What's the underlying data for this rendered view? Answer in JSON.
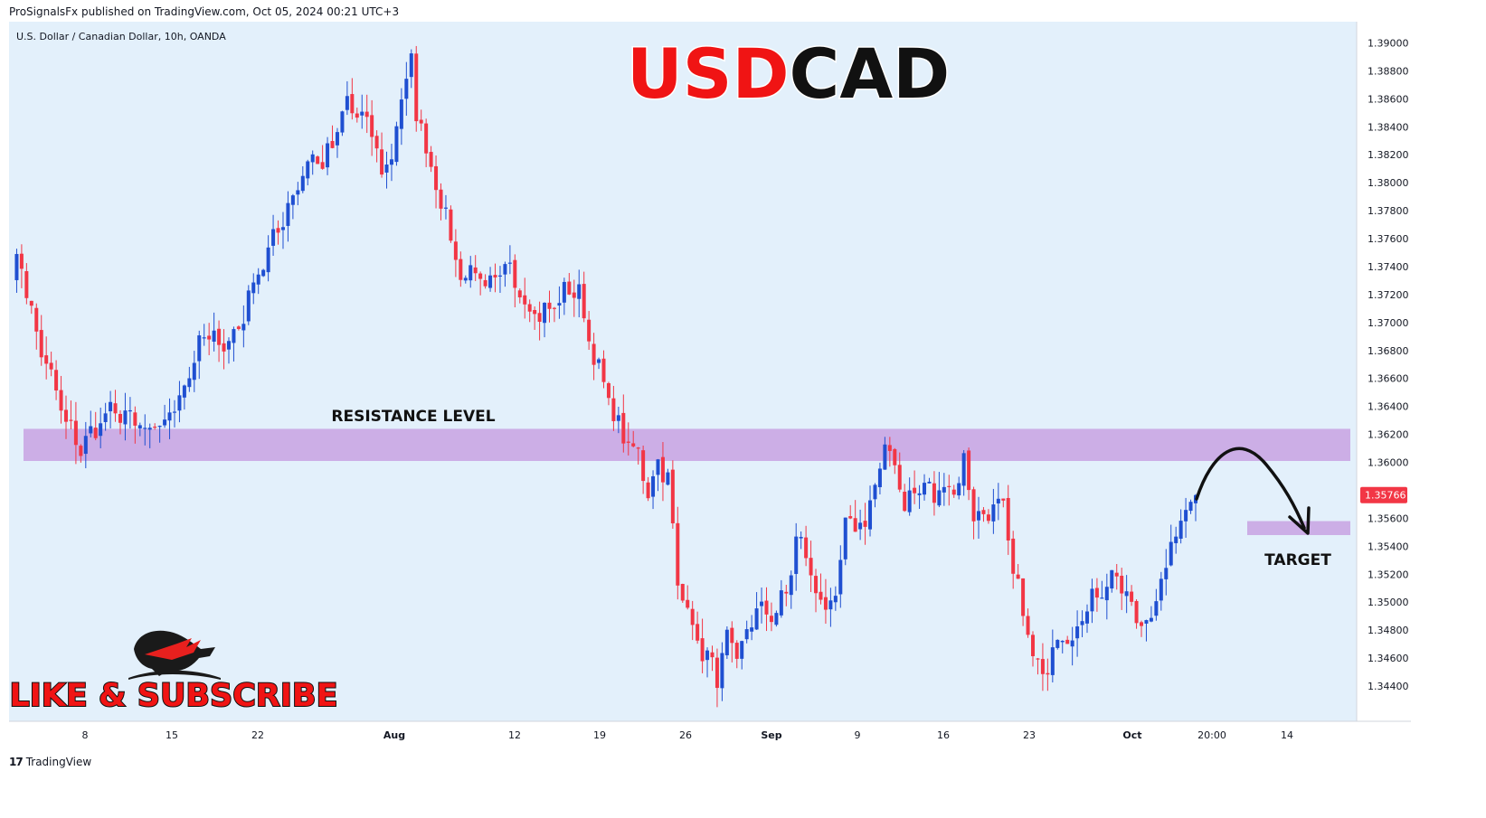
{
  "header": {
    "publisher_line": "ProSignalsFx published on TradingView.com, Oct 05, 2024 00:21 UTC+3"
  },
  "footer": {
    "brand": "TradingView"
  },
  "colors": {
    "background": "#e3f0fb",
    "bull": "#1f4fd1",
    "bear": "#f23645",
    "zone": "#c9a6e3",
    "price_tag": "#f23645",
    "title_red": "#f01414",
    "title_black": "#111111"
  },
  "chart_data": {
    "type": "candlestick",
    "instrument": "U.S. Dollar / Canadian Dollar, 10h, OANDA",
    "title_part1": "USD",
    "title_part2": "CAD",
    "ylim": [
      1.342,
      1.391
    ],
    "y_ticks": [
      "1.39000",
      "1.38800",
      "1.38600",
      "1.38400",
      "1.38200",
      "1.38000",
      "1.37800",
      "1.37600",
      "1.37400",
      "1.37200",
      "1.37000",
      "1.36800",
      "1.36600",
      "1.36400",
      "1.36200",
      "1.36000",
      "1.35600",
      "1.35400",
      "1.35200",
      "1.35000",
      "1.34800",
      "1.34600",
      "1.34400"
    ],
    "x_ticks": [
      {
        "label": "8",
        "bold": false
      },
      {
        "label": "15",
        "bold": false
      },
      {
        "label": "22",
        "bold": false
      },
      {
        "label": "Aug",
        "bold": true
      },
      {
        "label": "12",
        "bold": false
      },
      {
        "label": "19",
        "bold": false
      },
      {
        "label": "26",
        "bold": false
      },
      {
        "label": "Sep",
        "bold": true
      },
      {
        "label": "9",
        "bold": false
      },
      {
        "label": "16",
        "bold": false
      },
      {
        "label": "23",
        "bold": false
      },
      {
        "label": "Oct",
        "bold": true
      },
      {
        "label": "20:00",
        "bold": false
      },
      {
        "label": "14",
        "bold": false
      }
    ],
    "last_price": "1.35766",
    "annotations": {
      "resistance_label": "RESISTANCE LEVEL",
      "resistance_zone": [
        1.3601,
        1.3624
      ],
      "target_label": "TARGET",
      "target_zone": [
        1.3548,
        1.3558
      ]
    },
    "cta_text": "LIKE & SUBSCRIBE",
    "anchors": [
      [
        0,
        1.3738
      ],
      [
        2,
        1.3742
      ],
      [
        5,
        1.369
      ],
      [
        8,
        1.366
      ],
      [
        11,
        1.3628
      ],
      [
        14,
        1.361
      ],
      [
        17,
        1.3625
      ],
      [
        20,
        1.3636
      ],
      [
        24,
        1.3632
      ],
      [
        27,
        1.362
      ],
      [
        30,
        1.3625
      ],
      [
        33,
        1.364
      ],
      [
        36,
        1.3665
      ],
      [
        39,
        1.369
      ],
      [
        43,
        1.3685
      ],
      [
        46,
        1.3695
      ],
      [
        49,
        1.373
      ],
      [
        52,
        1.375
      ],
      [
        55,
        1.3775
      ],
      [
        58,
        1.38
      ],
      [
        61,
        1.382
      ],
      [
        63,
        1.3812
      ],
      [
        66,
        1.3835
      ],
      [
        68,
        1.3858
      ],
      [
        70,
        1.3848
      ],
      [
        73,
        1.3838
      ],
      [
        75,
        1.3805
      ],
      [
        77,
        1.3822
      ],
      [
        79,
        1.3858
      ],
      [
        81,
        1.389
      ],
      [
        82,
        1.3845
      ],
      [
        84,
        1.383
      ],
      [
        86,
        1.3795
      ],
      [
        88,
        1.378
      ],
      [
        90,
        1.374
      ],
      [
        92,
        1.3735
      ],
      [
        94,
        1.3738
      ],
      [
        96,
        1.3722
      ],
      [
        98,
        1.3728
      ],
      [
        101,
        1.3742
      ],
      [
        104,
        1.3715
      ],
      [
        107,
        1.3705
      ],
      [
        110,
        1.3712
      ],
      [
        113,
        1.3725
      ],
      [
        115,
        1.372
      ],
      [
        117,
        1.369
      ],
      [
        119,
        1.3665
      ],
      [
        121,
        1.3645
      ],
      [
        123,
        1.3625
      ],
      [
        125,
        1.3612
      ],
      [
        127,
        1.3605
      ],
      [
        129,
        1.358
      ],
      [
        131,
        1.36
      ],
      [
        133,
        1.359
      ],
      [
        135,
        1.351
      ],
      [
        137,
        1.35
      ],
      [
        139,
        1.347
      ],
      [
        141,
        1.346
      ],
      [
        143,
        1.3448
      ],
      [
        145,
        1.3472
      ],
      [
        147,
        1.3458
      ],
      [
        149,
        1.3478
      ],
      [
        151,
        1.3496
      ],
      [
        153,
        1.349
      ],
      [
        155,
        1.3495
      ],
      [
        157,
        1.3505
      ],
      [
        159,
        1.3545
      ],
      [
        161,
        1.3535
      ],
      [
        163,
        1.3505
      ],
      [
        165,
        1.35
      ],
      [
        167,
        1.3495
      ],
      [
        169,
        1.356
      ],
      [
        171,
        1.355
      ],
      [
        173,
        1.3562
      ],
      [
        175,
        1.358
      ],
      [
        177,
        1.361
      ],
      [
        179,
        1.36
      ],
      [
        181,
        1.357
      ],
      [
        183,
        1.3578
      ],
      [
        185,
        1.3584
      ],
      [
        187,
        1.3575
      ],
      [
        189,
        1.3585
      ],
      [
        191,
        1.358
      ],
      [
        193,
        1.36
      ],
      [
        195,
        1.3565
      ],
      [
        197,
        1.356
      ],
      [
        199,
        1.357
      ],
      [
        201,
        1.3565
      ],
      [
        203,
        1.352
      ],
      [
        205,
        1.3495
      ],
      [
        207,
        1.346
      ],
      [
        209,
        1.3445
      ],
      [
        211,
        1.347
      ],
      [
        213,
        1.348
      ],
      [
        215,
        1.3475
      ],
      [
        217,
        1.3485
      ],
      [
        219,
        1.351
      ],
      [
        221,
        1.3505
      ],
      [
        223,
        1.352
      ],
      [
        225,
        1.351
      ],
      [
        227,
        1.3495
      ],
      [
        229,
        1.3485
      ],
      [
        231,
        1.3492
      ],
      [
        233,
        1.351
      ],
      [
        235,
        1.354
      ],
      [
        237,
        1.356
      ],
      [
        239,
        1.3574
      ],
      [
        240,
        1.3577
      ]
    ]
  }
}
